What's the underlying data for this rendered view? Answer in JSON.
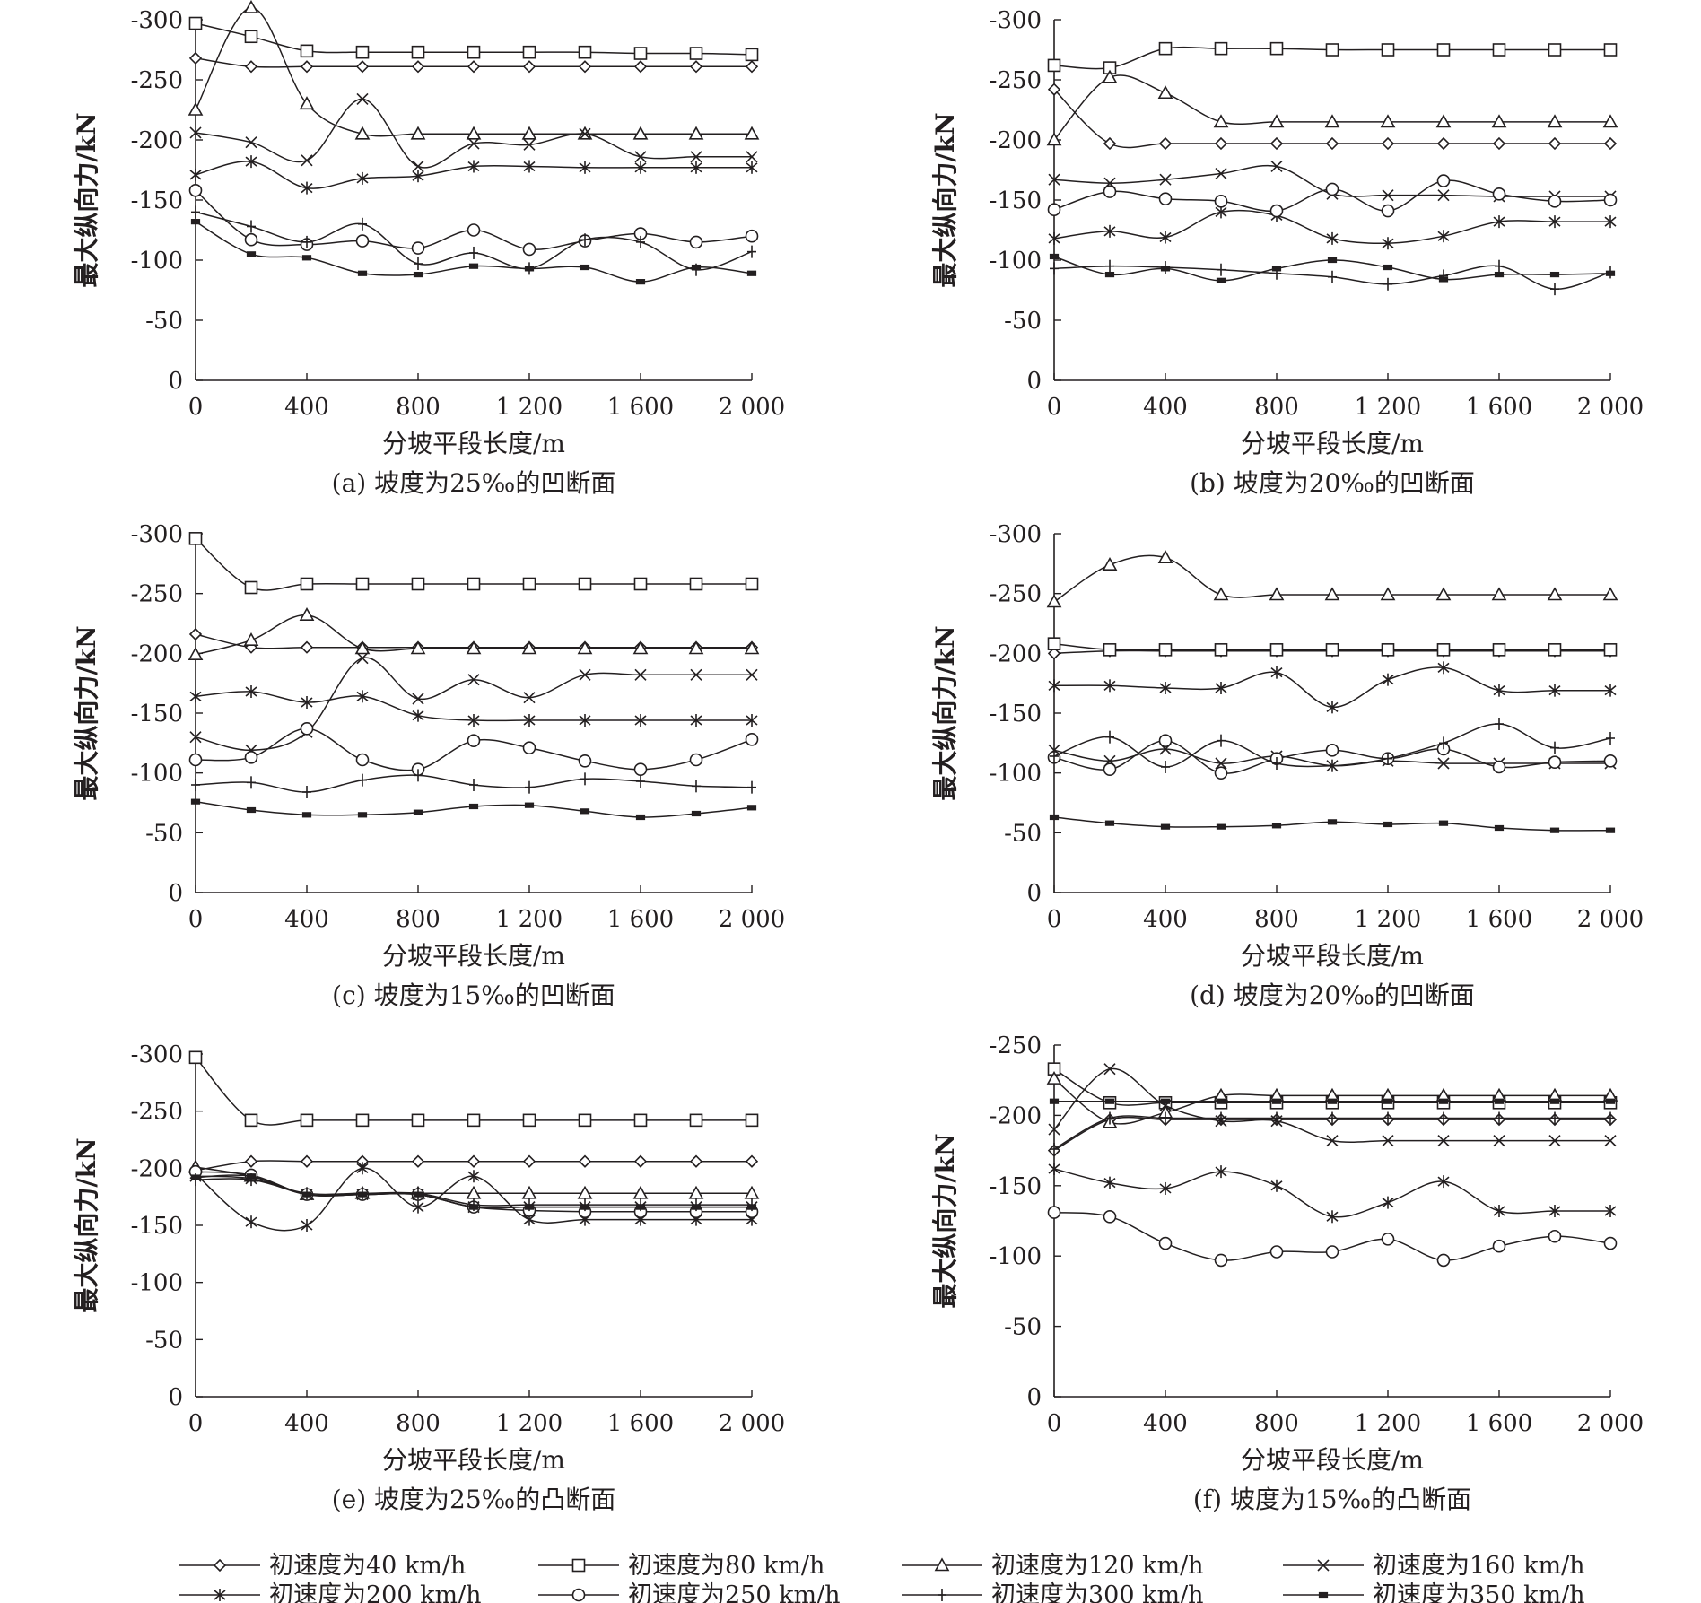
{
  "series_names": [
    "初速度为40 km/h",
    "初速度为80 km/h",
    "初速度为120 km/h",
    "初速度为160 km/h",
    "初速度为200 km/h",
    "初速度为250 km/h",
    "初速度为300 km/h",
    "初速度为350 km/h"
  ],
  "series_markers": [
    "diamond",
    "square",
    "triangle",
    "cross",
    "asterisk",
    "circle",
    "plus",
    "dash"
  ],
  "line_color": "#231f20",
  "chart_data": [
    {
      "type": "line",
      "caption": "(a) 坡度为25‰的凹断面",
      "xlabel": "分坡平段长度/m",
      "ylabel": "最大纵向力/kN",
      "xlim": [
        0,
        2000
      ],
      "ylim": [
        -300,
        0
      ],
      "xticks": [
        0,
        400,
        800,
        1200,
        1600,
        2000
      ],
      "xtick_labels": [
        "0",
        "400",
        "800",
        "1 200",
        "1 600",
        "2 000"
      ],
      "yticks": [
        -300,
        -250,
        -200,
        -150,
        -100,
        -50,
        0
      ],
      "ytick_labels": [
        "-300",
        "-250",
        "-200",
        "-150",
        "-100",
        "-50",
        "0"
      ],
      "x": [
        0,
        200,
        400,
        600,
        800,
        1000,
        1200,
        1400,
        1600,
        1800,
        2000
      ],
      "series": [
        {
          "values": [
            -268,
            -261,
            -261,
            -261,
            -261,
            -261,
            -261,
            -261,
            -261,
            -261,
            -261
          ]
        },
        {
          "values": [
            -297,
            -286,
            -274,
            -273,
            -273,
            -273,
            -273,
            -273,
            -272,
            -272,
            -271
          ]
        },
        {
          "values": [
            -225,
            -310,
            -230,
            -205,
            -205,
            -205,
            -205,
            -205,
            -205,
            -205,
            -205
          ]
        },
        {
          "values": [
            -206,
            -198,
            -183,
            -234,
            -178,
            -197,
            -196,
            -205,
            -186,
            -186,
            -186
          ]
        },
        {
          "values": [
            -171,
            -182,
            -160,
            -168,
            -170,
            -178,
            -178,
            -177,
            -177,
            -177,
            -177
          ]
        },
        {
          "values": [
            -158,
            -117,
            -113,
            -116,
            -110,
            -125,
            -109,
            -116,
            -122,
            -115,
            -120
          ]
        },
        {
          "values": [
            -140,
            -128,
            -115,
            -130,
            -97,
            -106,
            -93,
            -117,
            -115,
            -92,
            -107
          ]
        },
        {
          "values": [
            -132,
            -105,
            -102,
            -89,
            -88,
            -95,
            -93,
            -94,
            -82,
            -94,
            -89
          ]
        }
      ]
    },
    {
      "type": "line",
      "caption": "(b) 坡度为20‰的凹断面",
      "xlabel": "分坡平段长度/m",
      "ylabel": "最大纵向力/kN",
      "xlim": [
        0,
        2000
      ],
      "ylim": [
        -300,
        0
      ],
      "xticks": [
        0,
        400,
        800,
        1200,
        1600,
        2000
      ],
      "xtick_labels": [
        "0",
        "400",
        "800",
        "1 200",
        "1 600",
        "2 000"
      ],
      "yticks": [
        -300,
        -250,
        -200,
        -150,
        -100,
        -50,
        0
      ],
      "ytick_labels": [
        "-300",
        "-250",
        "-200",
        "-150",
        "-100",
        "-50",
        "0"
      ],
      "x": [
        0,
        200,
        400,
        600,
        800,
        1000,
        1200,
        1400,
        1600,
        1800,
        2000
      ],
      "series": [
        {
          "values": [
            -242,
            -197,
            -197,
            -197,
            -197,
            -197,
            -197,
            -197,
            -197,
            -197,
            -197
          ]
        },
        {
          "values": [
            -262,
            -260,
            -276,
            -276,
            -276,
            -275,
            -275,
            -275,
            -275,
            -275,
            -275
          ]
        },
        {
          "values": [
            -200,
            -252,
            -239,
            -215,
            -215,
            -215,
            -215,
            -215,
            -215,
            -215,
            -215
          ]
        },
        {
          "values": [
            -167,
            -164,
            -167,
            -172,
            -178,
            -155,
            -154,
            -154,
            -153,
            -153,
            -153
          ]
        },
        {
          "values": [
            -118,
            -124,
            -119,
            -140,
            -137,
            -118,
            -114,
            -120,
            -132,
            -132,
            -132
          ]
        },
        {
          "values": [
            -142,
            -157,
            -151,
            -149,
            -141,
            -159,
            -141,
            -166,
            -155,
            -149,
            -150
          ]
        },
        {
          "values": [
            -93,
            -95,
            -94,
            -92,
            -89,
            -86,
            -80,
            -87,
            -95,
            -76,
            -90
          ]
        },
        {
          "values": [
            -103,
            -88,
            -93,
            -83,
            -93,
            -100,
            -94,
            -84,
            -88,
            -88,
            -89
          ]
        }
      ]
    },
    {
      "type": "line",
      "caption": "(c) 坡度为15‰的凹断面",
      "xlabel": "分坡平段长度/m",
      "ylabel": "最大纵向力/kN",
      "xlim": [
        0,
        2000
      ],
      "ylim": [
        -300,
        0
      ],
      "xticks": [
        0,
        400,
        800,
        1200,
        1600,
        2000
      ],
      "xtick_labels": [
        "0",
        "400",
        "800",
        "1 200",
        "1 600",
        "2 000"
      ],
      "yticks": [
        -300,
        -250,
        -200,
        -150,
        -100,
        -50,
        0
      ],
      "ytick_labels": [
        "-300",
        "-250",
        "-200",
        "-150",
        "-100",
        "-50",
        "0"
      ],
      "x": [
        0,
        200,
        400,
        600,
        800,
        1000,
        1200,
        1400,
        1600,
        1800,
        2000
      ],
      "series": [
        {
          "values": [
            -216,
            -205,
            -205,
            -205,
            -205,
            -205,
            -205,
            -205,
            -205,
            -205,
            -205
          ]
        },
        {
          "values": [
            -296,
            -255,
            -258,
            -258,
            -258,
            -258,
            -258,
            -258,
            -258,
            -258,
            -258
          ]
        },
        {
          "values": [
            -199,
            -211,
            -232,
            -204,
            -204,
            -204,
            -204,
            -204,
            -204,
            -204,
            -204
          ]
        },
        {
          "values": [
            -130,
            -119,
            -134,
            -196,
            -162,
            -178,
            -163,
            -182,
            -182,
            -182,
            -182
          ]
        },
        {
          "values": [
            -164,
            -168,
            -159,
            -164,
            -148,
            -144,
            -144,
            -144,
            -144,
            -144,
            -144
          ]
        },
        {
          "values": [
            -111,
            -113,
            -137,
            -111,
            -103,
            -127,
            -121,
            -110,
            -103,
            -111,
            -128
          ]
        },
        {
          "values": [
            -90,
            -92,
            -84,
            -94,
            -98,
            -90,
            -88,
            -95,
            -93,
            -89,
            -88
          ]
        },
        {
          "values": [
            -76,
            -69,
            -65,
            -65,
            -67,
            -72,
            -73,
            -68,
            -63,
            -66,
            -71
          ]
        }
      ]
    },
    {
      "type": "line",
      "caption": "(d) 坡度为20‰的凹断面",
      "xlabel": "分坡平段长度/m",
      "ylabel": "最大纵向力/kN",
      "xlim": [
        0,
        2000
      ],
      "ylim": [
        -300,
        0
      ],
      "xticks": [
        0,
        400,
        800,
        1200,
        1600,
        2000
      ],
      "xtick_labels": [
        "0",
        "400",
        "800",
        "1 200",
        "1 600",
        "2 000"
      ],
      "yticks": [
        -300,
        -250,
        -200,
        -150,
        -100,
        -50,
        0
      ],
      "ytick_labels": [
        "-300",
        "-250",
        "-200",
        "-150",
        "-100",
        "-50",
        "0"
      ],
      "x": [
        0,
        200,
        400,
        600,
        800,
        1000,
        1200,
        1400,
        1600,
        1800,
        2000
      ],
      "series": [
        {
          "values": [
            -200,
            -202,
            -202,
            -202,
            -202,
            -202,
            -202,
            -202,
            -202,
            -202,
            -202
          ]
        },
        {
          "values": [
            -208,
            -203,
            -203,
            -203,
            -203,
            -203,
            -203,
            -203,
            -203,
            -203,
            -203
          ]
        },
        {
          "values": [
            -243,
            -274,
            -280,
            -249,
            -249,
            -249,
            -249,
            -249,
            -249,
            -249,
            -249
          ]
        },
        {
          "values": [
            -119,
            -110,
            -120,
            -108,
            -114,
            -106,
            -110,
            -108,
            -108,
            -108,
            -108
          ]
        },
        {
          "values": [
            -173,
            -173,
            -171,
            -171,
            -184,
            -155,
            -178,
            -188,
            -169,
            -169,
            -169
          ]
        },
        {
          "values": [
            -113,
            -103,
            -127,
            -100,
            -112,
            -119,
            -112,
            -120,
            -105,
            -109,
            -110
          ]
        },
        {
          "values": [
            -114,
            -130,
            -105,
            -127,
            -108,
            -106,
            -112,
            -125,
            -141,
            -121,
            -129
          ]
        },
        {
          "values": [
            -63,
            -58,
            -55,
            -55,
            -56,
            -59,
            -57,
            -58,
            -54,
            -52,
            -52
          ]
        }
      ]
    },
    {
      "type": "line",
      "caption": "(e) 坡度为25‰的凸断面",
      "xlabel": "分坡平段长度/m",
      "ylabel": "最大纵向力/kN",
      "xlim": [
        0,
        2000
      ],
      "ylim": [
        -300,
        0
      ],
      "xticks": [
        0,
        400,
        800,
        1200,
        1600,
        2000
      ],
      "xtick_labels": [
        "0",
        "400",
        "800",
        "1 200",
        "1 600",
        "2 000"
      ],
      "yticks": [
        -300,
        -250,
        -200,
        -150,
        -100,
        -50,
        0
      ],
      "ytick_labels": [
        "-300",
        "-250",
        "-200",
        "-150",
        "-100",
        "-50",
        "0"
      ],
      "x": [
        0,
        200,
        400,
        600,
        800,
        1000,
        1200,
        1400,
        1600,
        1800,
        2000
      ],
      "series": [
        {
          "values": [
            -198,
            -206,
            -206,
            -206,
            -206,
            -206,
            -206,
            -206,
            -206,
            -206,
            -206
          ]
        },
        {
          "values": [
            -297,
            -242,
            -242,
            -242,
            -242,
            -242,
            -242,
            -242,
            -242,
            -242,
            -242
          ]
        },
        {
          "values": [
            -201,
            -193,
            -177,
            -178,
            -178,
            -178,
            -178,
            -178,
            -178,
            -178,
            -178
          ]
        },
        {
          "values": [
            -193,
            -191,
            -177,
            -177,
            -177,
            -166,
            -166,
            -166,
            -166,
            -166,
            -166
          ]
        },
        {
          "values": [
            -195,
            -153,
            -150,
            -200,
            -166,
            -193,
            -155,
            -155,
            -155,
            -155,
            -155
          ]
        },
        {
          "values": [
            -197,
            -194,
            -177,
            -177,
            -177,
            -166,
            -163,
            -162,
            -162,
            -162,
            -162
          ]
        },
        {
          "values": [
            -190,
            -190,
            -178,
            -178,
            -178,
            -168,
            -168,
            -168,
            -168,
            -168,
            -168
          ]
        },
        {
          "values": [
            -192,
            -193,
            -177,
            -177,
            -177,
            -166,
            -166,
            -166,
            -166,
            -166,
            -166
          ]
        }
      ]
    },
    {
      "type": "line",
      "caption": "(f) 坡度为15‰的凸断面",
      "xlabel": "分坡平段长度/m",
      "ylabel": "最大纵向力/kN",
      "xlim": [
        0,
        2000
      ],
      "ylim": [
        -250,
        0
      ],
      "xticks": [
        0,
        400,
        800,
        1200,
        1600,
        2000
      ],
      "xtick_labels": [
        "0",
        "400",
        "800",
        "1 200",
        "1 600",
        "2 000"
      ],
      "yticks": [
        -250,
        -200,
        -150,
        -100,
        -50,
        0
      ],
      "ytick_labels": [
        "-250",
        "-200",
        "-150",
        "-100",
        "-50",
        "0"
      ],
      "x": [
        0,
        200,
        400,
        600,
        800,
        1000,
        1200,
        1400,
        1600,
        1800,
        2000
      ],
      "series": [
        {
          "values": [
            -175,
            -197,
            -197,
            -197,
            -197,
            -197,
            -197,
            -197,
            -197,
            -197,
            -197
          ]
        },
        {
          "values": [
            -233,
            -209,
            -209,
            -209,
            -209,
            -209,
            -209,
            -209,
            -209,
            -209,
            -209
          ]
        },
        {
          "values": [
            -226,
            -195,
            -202,
            -214,
            -214,
            -214,
            -214,
            -214,
            -214,
            -214,
            -214
          ]
        },
        {
          "values": [
            -190,
            -233,
            -207,
            -196,
            -196,
            -182,
            -182,
            -182,
            -182,
            -182,
            -182
          ]
        },
        {
          "values": [
            -162,
            -152,
            -148,
            -160,
            -150,
            -128,
            -138,
            -153,
            -132,
            -132,
            -132
          ]
        },
        {
          "values": [
            -131,
            -128,
            -109,
            -97,
            -103,
            -103,
            -112,
            -97,
            -107,
            -114,
            -109
          ]
        },
        {
          "values": [
            -176,
            -198,
            -198,
            -198,
            -198,
            -198,
            -198,
            -198,
            -198,
            -198,
            -198
          ]
        },
        {
          "values": [
            -210,
            -210,
            -210,
            -210,
            -210,
            -210,
            -210,
            -210,
            -210,
            -210,
            -210
          ]
        }
      ]
    }
  ]
}
